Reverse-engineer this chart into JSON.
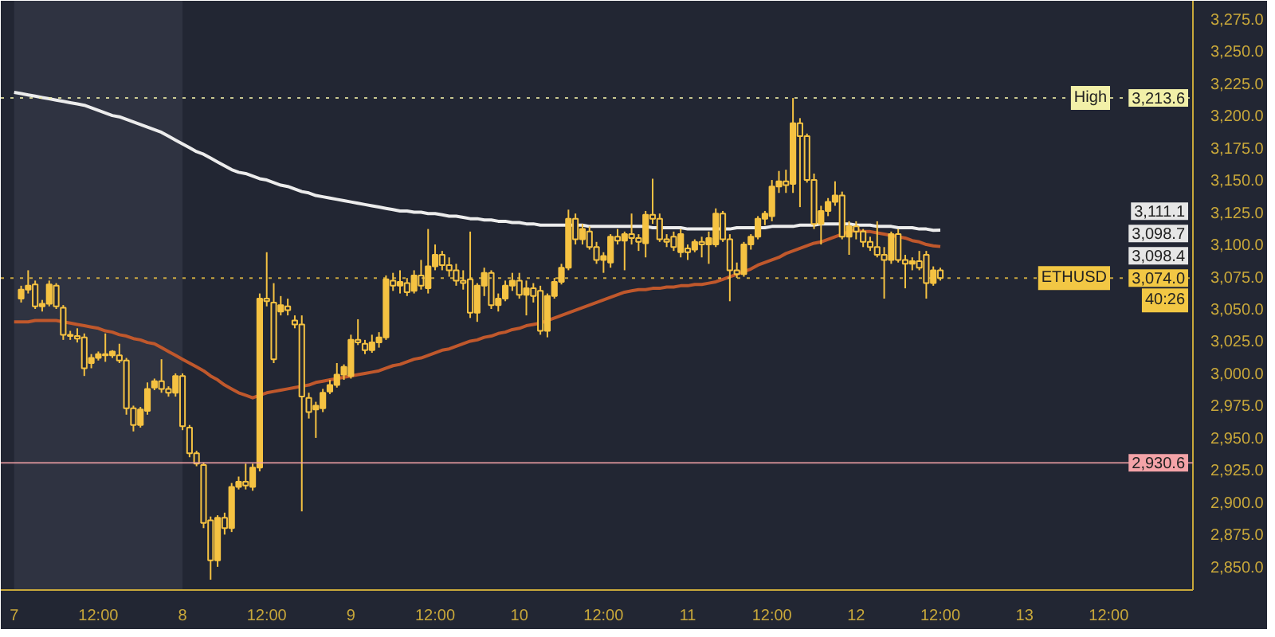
{
  "chart_data": {
    "type": "candlestick",
    "color": "#f5c242",
    "categories": [
      "7",
      null,
      null,
      null,
      null,
      null,
      null,
      null,
      null,
      null,
      null,
      null,
      "12:00",
      null,
      null,
      null,
      null,
      null,
      null,
      null,
      null,
      null,
      null,
      null,
      "8",
      null,
      null,
      null,
      null,
      null,
      null,
      null,
      null,
      null,
      null,
      null,
      "12:00",
      null,
      null,
      null,
      null,
      null,
      null,
      null,
      null,
      null,
      null,
      null,
      "9",
      null,
      null,
      null,
      null,
      null,
      null,
      null,
      null,
      null,
      null,
      null,
      "12:00",
      null,
      null,
      null,
      null,
      null,
      null,
      null,
      null,
      null,
      null,
      null,
      "10",
      null,
      null,
      null,
      null,
      null,
      null,
      null,
      null,
      null,
      null,
      null,
      "12:00",
      null,
      null,
      null,
      null,
      null,
      null,
      null,
      null,
      null,
      null,
      null,
      "11",
      null,
      null,
      null,
      null,
      null,
      null,
      null,
      null,
      null,
      null,
      null,
      "12:00",
      null,
      null,
      null,
      null,
      null,
      null,
      null,
      null,
      null,
      null,
      null,
      "12",
      null,
      null,
      null,
      null,
      null,
      null,
      null,
      null,
      null,
      null,
      null,
      "12:00",
      null,
      null,
      null,
      null,
      null,
      null,
      null,
      null,
      null,
      null,
      null,
      "13",
      null,
      null,
      null,
      null,
      null,
      null,
      null,
      null,
      null,
      null,
      null,
      "12:00"
    ],
    "ohlc": [
      null,
      [
        3058,
        3068,
        3055,
        3065
      ],
      [
        3065,
        3080,
        3062,
        3068
      ],
      [
        3069,
        3072,
        3050,
        3052
      ],
      [
        3052,
        3057,
        3048,
        3054
      ],
      [
        3054,
        3072,
        3052,
        3069
      ],
      [
        3068,
        3070,
        3050,
        3052
      ],
      [
        3051,
        3053,
        3026,
        3030
      ],
      [
        3030,
        3033,
        3026,
        3029
      ],
      [
        3029,
        3035,
        3024,
        3027
      ],
      [
        3028,
        3031,
        2998,
        3004
      ],
      [
        3008,
        3015,
        3004,
        3012
      ],
      [
        3012,
        3017,
        3010,
        3015
      ],
      [
        3015,
        3031,
        3009,
        3014
      ],
      [
        3014,
        3018,
        3012,
        3017
      ],
      [
        3014,
        3023,
        3008,
        3010
      ],
      [
        3010,
        3012,
        2968,
        2973
      ],
      [
        2973,
        2975,
        2955,
        2960
      ],
      [
        2960,
        2974,
        2958,
        2972
      ],
      [
        2971,
        2993,
        2968,
        2988
      ],
      [
        2989,
        2996,
        2987,
        2994
      ],
      [
        2994,
        3011,
        2985,
        2988
      ],
      [
        2988,
        2990,
        2982,
        2985
      ],
      [
        2985,
        3000,
        2982,
        2998
      ],
      [
        2998,
        3000,
        2956,
        2959
      ],
      [
        2958,
        2960,
        2935,
        2938
      ],
      [
        2938,
        2940,
        2928,
        2930
      ],
      [
        2929,
        2931,
        2880,
        2884
      ],
      [
        2886,
        2889,
        2840,
        2855
      ],
      [
        2855,
        2890,
        2850,
        2888
      ],
      [
        2888,
        2892,
        2875,
        2880
      ],
      [
        2880,
        2915,
        2877,
        2912
      ],
      [
        2912,
        2920,
        2910,
        2916
      ],
      [
        2916,
        2930,
        2910,
        2913
      ],
      [
        2912,
        2930,
        2909,
        2927
      ],
      [
        2927,
        3062,
        2924,
        3058
      ],
      [
        3058,
        3094,
        3052,
        3056
      ],
      [
        3055,
        3070,
        3008,
        3011
      ],
      [
        3048,
        3060,
        3045,
        3053
      ],
      [
        3052,
        3058,
        3045,
        3049
      ],
      [
        3041,
        3045,
        3035,
        3038
      ],
      [
        3038,
        3045,
        2893,
        2982
      ],
      [
        2981,
        2985,
        2965,
        2970
      ],
      [
        2972,
        2978,
        2950,
        2975
      ],
      [
        2973,
        2988,
        2970,
        2985
      ],
      [
        2986,
        2995,
        2984,
        2991
      ],
      [
        2991,
        3008,
        2989,
        2999
      ],
      [
        2999,
        3007,
        2995,
        3005
      ],
      [
        2998,
        3030,
        2996,
        3026
      ],
      [
        3026,
        3042,
        3022,
        3024
      ],
      [
        3023,
        3026,
        3015,
        3018
      ],
      [
        3018,
        3030,
        3016,
        3024
      ],
      [
        3024,
        3032,
        3020,
        3028
      ],
      [
        3028,
        3076,
        3026,
        3073
      ],
      [
        3072,
        3078,
        3064,
        3068
      ],
      [
        3068,
        3080,
        3062,
        3071
      ],
      [
        3070,
        3074,
        3060,
        3063
      ],
      [
        3064,
        3080,
        3062,
        3076
      ],
      [
        3076,
        3088,
        3065,
        3068
      ],
      [
        3066,
        3112,
        3062,
        3083
      ],
      [
        3083,
        3100,
        3080,
        3092
      ],
      [
        3092,
        3095,
        3080,
        3084
      ],
      [
        3084,
        3090,
        3075,
        3080
      ],
      [
        3080,
        3085,
        3068,
        3072
      ],
      [
        3072,
        3080,
        3065,
        3070
      ],
      [
        3073,
        3110,
        3043,
        3047
      ],
      [
        3047,
        3070,
        3040,
        3068
      ],
      [
        3068,
        3082,
        3060,
        3078
      ],
      [
        3078,
        3080,
        3050,
        3053
      ],
      [
        3053,
        3062,
        3048,
        3058
      ],
      [
        3058,
        3072,
        3056,
        3068
      ],
      [
        3068,
        3078,
        3064,
        3072
      ],
      [
        3072,
        3078,
        3058,
        3061
      ],
      [
        3061,
        3072,
        3045,
        3066
      ],
      [
        3066,
        3070,
        3055,
        3060
      ],
      [
        3064,
        3068,
        3030,
        3033
      ],
      [
        3033,
        3062,
        3028,
        3060
      ],
      [
        3060,
        3074,
        3058,
        3071
      ],
      [
        3071,
        3085,
        3069,
        3082
      ],
      [
        3082,
        3127,
        3080,
        3120
      ],
      [
        3120,
        3124,
        3100,
        3104
      ],
      [
        3104,
        3116,
        3100,
        3112
      ],
      [
        3110,
        3114,
        3096,
        3098
      ],
      [
        3098,
        3102,
        3085,
        3088
      ],
      [
        3088,
        3094,
        3078,
        3091
      ],
      [
        3086,
        3108,
        3082,
        3106
      ],
      [
        3106,
        3112,
        3100,
        3103
      ],
      [
        3103,
        3110,
        3080,
        3108
      ],
      [
        3108,
        3124,
        3100,
        3105
      ],
      [
        3105,
        3108,
        3095,
        3102
      ],
      [
        3101,
        3126,
        3090,
        3123
      ],
      [
        3123,
        3151,
        3116,
        3120
      ],
      [
        3120,
        3124,
        3102,
        3104
      ],
      [
        3104,
        3108,
        3098,
        3102
      ],
      [
        3106,
        3110,
        3095,
        3098
      ],
      [
        3094,
        3112,
        3090,
        3108
      ],
      [
        3097,
        3100,
        3088,
        3094
      ],
      [
        3096,
        3104,
        3094,
        3102
      ],
      [
        3102,
        3106,
        3090,
        3100
      ],
      [
        3100,
        3110,
        3085,
        3105
      ],
      [
        3100,
        3128,
        3098,
        3124
      ],
      [
        3124,
        3126,
        3102,
        3104
      ],
      [
        3104,
        3108,
        3056,
        3080
      ],
      [
        3080,
        3086,
        3074,
        3077
      ],
      [
        3077,
        3102,
        3075,
        3100
      ],
      [
        3100,
        3108,
        3096,
        3106
      ],
      [
        3106,
        3122,
        3104,
        3120
      ],
      [
        3120,
        3126,
        3115,
        3124
      ],
      [
        3122,
        3150,
        3118,
        3145
      ],
      [
        3145,
        3157,
        3140,
        3149
      ],
      [
        3149,
        3158,
        3140,
        3146
      ],
      [
        3147,
        3213.6,
        3140,
        3194
      ],
      [
        3194,
        3198,
        3129,
        3184
      ],
      [
        3184,
        3186,
        3148,
        3150
      ],
      [
        3150,
        3155,
        3112,
        3116
      ],
      [
        3116,
        3130,
        3100,
        3126
      ],
      [
        3126,
        3136,
        3122,
        3133
      ],
      [
        3133,
        3149,
        3130,
        3138
      ],
      [
        3138,
        3141,
        3104,
        3106
      ],
      [
        3106,
        3118,
        3092,
        3114
      ],
      [
        3114,
        3118,
        3104,
        3110
      ],
      [
        3110,
        3112,
        3098,
        3102
      ],
      [
        3102,
        3106,
        3095,
        3098
      ],
      [
        3098,
        3118,
        3090,
        3092
      ],
      [
        3092,
        3098,
        3058,
        3088
      ],
      [
        3088,
        3110,
        3085,
        3108
      ],
      [
        3108,
        3112,
        3086,
        3088
      ],
      [
        3088,
        3092,
        3066,
        3085
      ],
      [
        3085,
        3090,
        3080,
        3087
      ],
      [
        3087,
        3095,
        3080,
        3082
      ],
      [
        3092,
        3095,
        3058,
        3070
      ],
      [
        3070,
        3083,
        3068,
        3080
      ],
      [
        3080,
        3082,
        3072,
        3074
      ],
      null,
      null,
      null,
      null,
      null,
      null,
      null,
      null,
      null,
      null,
      null,
      null,
      null,
      null,
      null,
      null,
      null,
      null,
      null,
      null,
      null,
      null,
      null,
      null
    ],
    "series": [
      {
        "type": "line",
        "color": "#ececec",
        "values": [
          3218,
          3217,
          3216,
          3215,
          3214,
          3213,
          3212,
          3211,
          3210,
          3209,
          3208,
          3206,
          3204,
          3202,
          3200,
          3199,
          3197,
          3195,
          3193,
          3191,
          3189,
          3187,
          3184,
          3181,
          3178,
          3175,
          3172,
          3170,
          3167,
          3164,
          3161,
          3158,
          3156,
          3155,
          3153,
          3151,
          3150,
          3148,
          3146,
          3145,
          3143,
          3141,
          3140,
          3138,
          3137,
          3136,
          3135,
          3134,
          3133,
          3132,
          3131,
          3130,
          3129,
          3128,
          3127,
          3126,
          3126,
          3125,
          3125,
          3124,
          3124,
          3123,
          3122,
          3122,
          3121,
          3120,
          3120,
          3119,
          3119,
          3118,
          3118,
          3117,
          3117,
          3116,
          3116,
          3115,
          3115,
          3115,
          3115,
          3115,
          3115,
          3115,
          3114,
          3114,
          3114,
          3114,
          3114,
          3114,
          3114,
          3114,
          3114,
          3113,
          3113,
          3113,
          3113,
          3113,
          3112,
          3112,
          3112,
          3112,
          3112,
          3112,
          3112,
          3113,
          3113,
          3113,
          3113,
          3113,
          3114,
          3114,
          3114,
          3114,
          3115,
          3115,
          3115,
          3116,
          3116,
          3116,
          3116,
          3116,
          3115,
          3115,
          3115,
          3114,
          3114,
          3114,
          3113,
          3113,
          3113,
          3112,
          3112,
          3111,
          3111.1,
          null,
          null,
          null,
          null,
          null,
          null,
          null,
          null,
          null,
          null,
          null,
          null,
          null,
          null,
          null,
          null,
          null,
          null,
          null,
          null,
          null,
          null,
          null,
          null
        ]
      },
      {
        "type": "line",
        "color": "#c0582c",
        "values": [
          3040,
          3040,
          3040,
          3041,
          3041,
          3041,
          3041,
          3040,
          3039,
          3038,
          3037,
          3036,
          3035,
          3033,
          3032,
          3030,
          3029,
          3027,
          3026,
          3024,
          3023,
          3020,
          3017,
          3014,
          3011,
          3008,
          3005,
          3002,
          2998,
          2995,
          2991,
          2988,
          2985,
          2983,
          2981,
          2983,
          2985,
          2986,
          2987,
          2988,
          2989,
          2990,
          2991,
          2993,
          2994,
          2995,
          2996,
          2997,
          2998,
          2999,
          3000,
          3001,
          3002,
          3004,
          3006,
          3007,
          3009,
          3011,
          3012,
          3014,
          3016,
          3018,
          3019,
          3021,
          3023,
          3025,
          3026,
          3028,
          3029,
          3031,
          3032,
          3034,
          3035,
          3037,
          3038,
          3039,
          3041,
          3043,
          3045,
          3047,
          3049,
          3051,
          3053,
          3055,
          3057,
          3059,
          3061,
          3063,
          3064,
          3065,
          3065,
          3066,
          3066,
          3067,
          3067,
          3068,
          3068,
          3069,
          3069,
          3070,
          3071,
          3073,
          3075,
          3077,
          3079,
          3081,
          3084,
          3086,
          3088,
          3090,
          3093,
          3095,
          3097,
          3099,
          3101,
          3102,
          3104,
          3106,
          3108,
          3110,
          3111,
          3110,
          3110,
          3109,
          3108,
          3107,
          3106,
          3105,
          3103,
          3102,
          3100,
          3099,
          3098.4,
          null,
          null,
          null,
          null,
          null,
          null,
          null,
          null,
          null,
          null,
          null,
          null,
          null,
          null,
          null,
          null,
          null,
          null,
          null,
          null,
          null,
          null,
          null,
          null
        ]
      }
    ],
    "ylim": [
      2832,
      3289
    ],
    "yticks": [
      {
        "value": 2850,
        "label": "2,850.0"
      },
      {
        "value": 2875,
        "label": "2,875.0"
      },
      {
        "value": 2900,
        "label": "2,900.0"
      },
      {
        "value": 2925,
        "label": "2,925.0"
      },
      {
        "value": 2950,
        "label": "2,950.0"
      },
      {
        "value": 2975,
        "label": "2,975.0"
      },
      {
        "value": 3000,
        "label": "3,000.0"
      },
      {
        "value": 3025,
        "label": "3,025.0"
      },
      {
        "value": 3050,
        "label": "3,050.0"
      },
      {
        "value": 3075,
        "label": "3,075.0"
      },
      {
        "value": 3100,
        "label": "3,100.0"
      },
      {
        "value": 3125,
        "label": "3,125.0"
      },
      {
        "value": 3150,
        "label": "3,150.0"
      },
      {
        "value": 3175,
        "label": "3,175.0"
      },
      {
        "value": 3200,
        "label": "3,200.0"
      },
      {
        "value": 3225,
        "label": "3,225.0"
      },
      {
        "value": 3250,
        "label": "3,250.0"
      },
      {
        "value": 3275,
        "label": "3,275.0"
      }
    ],
    "bands": [
      {
        "axis": "x",
        "from": "7",
        "to": "8",
        "color": "#2f3341"
      }
    ],
    "ref_lines": [
      {
        "axis": "y",
        "value": 3213.6,
        "label": "High",
        "color": "#f2f0a8",
        "line_style": "dotted"
      },
      {
        "axis": "y",
        "value": 3074.0,
        "label": "ETHUSD",
        "color": "#f2c744",
        "line_style": "dotted"
      },
      {
        "axis": "y",
        "value": 2930.6,
        "color": "#f4a3a8",
        "line_style": "solid"
      }
    ],
    "annotations": [
      {
        "text": "3,213.6",
        "y": 3213.6
      },
      "3,111.1",
      "3,098.7",
      "3,098.4",
      {
        "text": "3,074.0",
        "y": 3074.0
      },
      {
        "text": "40:26",
        "y": 3074.0
      },
      {
        "text": "2,930.6",
        "y": 2930.6
      }
    ]
  }
}
